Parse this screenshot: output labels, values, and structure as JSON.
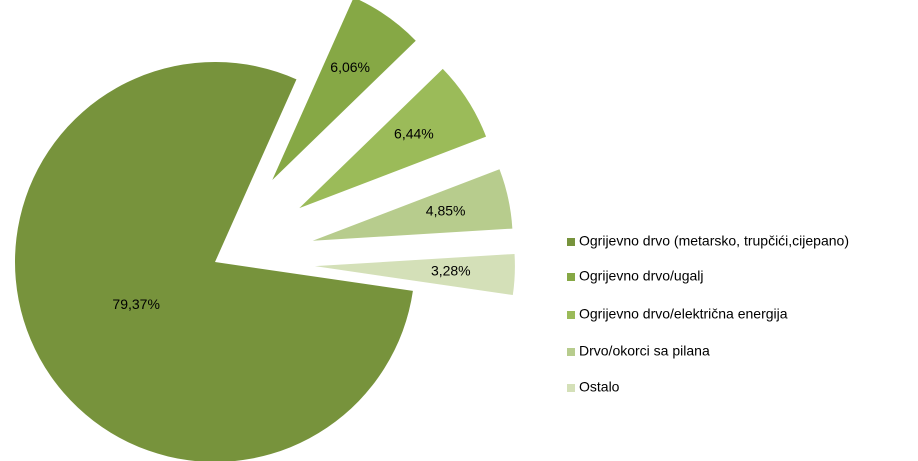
{
  "chart_data": {
    "type": "pie",
    "categories": [
      "Ogrijevno drvo (metarsko, trupčići,cijepano)",
      "Ogrijevno drvo/ugalj",
      "Ogrijevno drvo/električna energija",
      "Drvo/okorci sa pilana",
      "Ostalo"
    ],
    "values": [
      79.37,
      6.06,
      6.44,
      4.85,
      3.28
    ],
    "value_labels": [
      "79,37%",
      "6,06%",
      "6,44%",
      "4,85%",
      "3,28%"
    ],
    "colors": [
      "#77933c",
      "#86a845",
      "#9bbb59",
      "#b7cc8d",
      "#d4e0b8"
    ],
    "legend": "right"
  }
}
